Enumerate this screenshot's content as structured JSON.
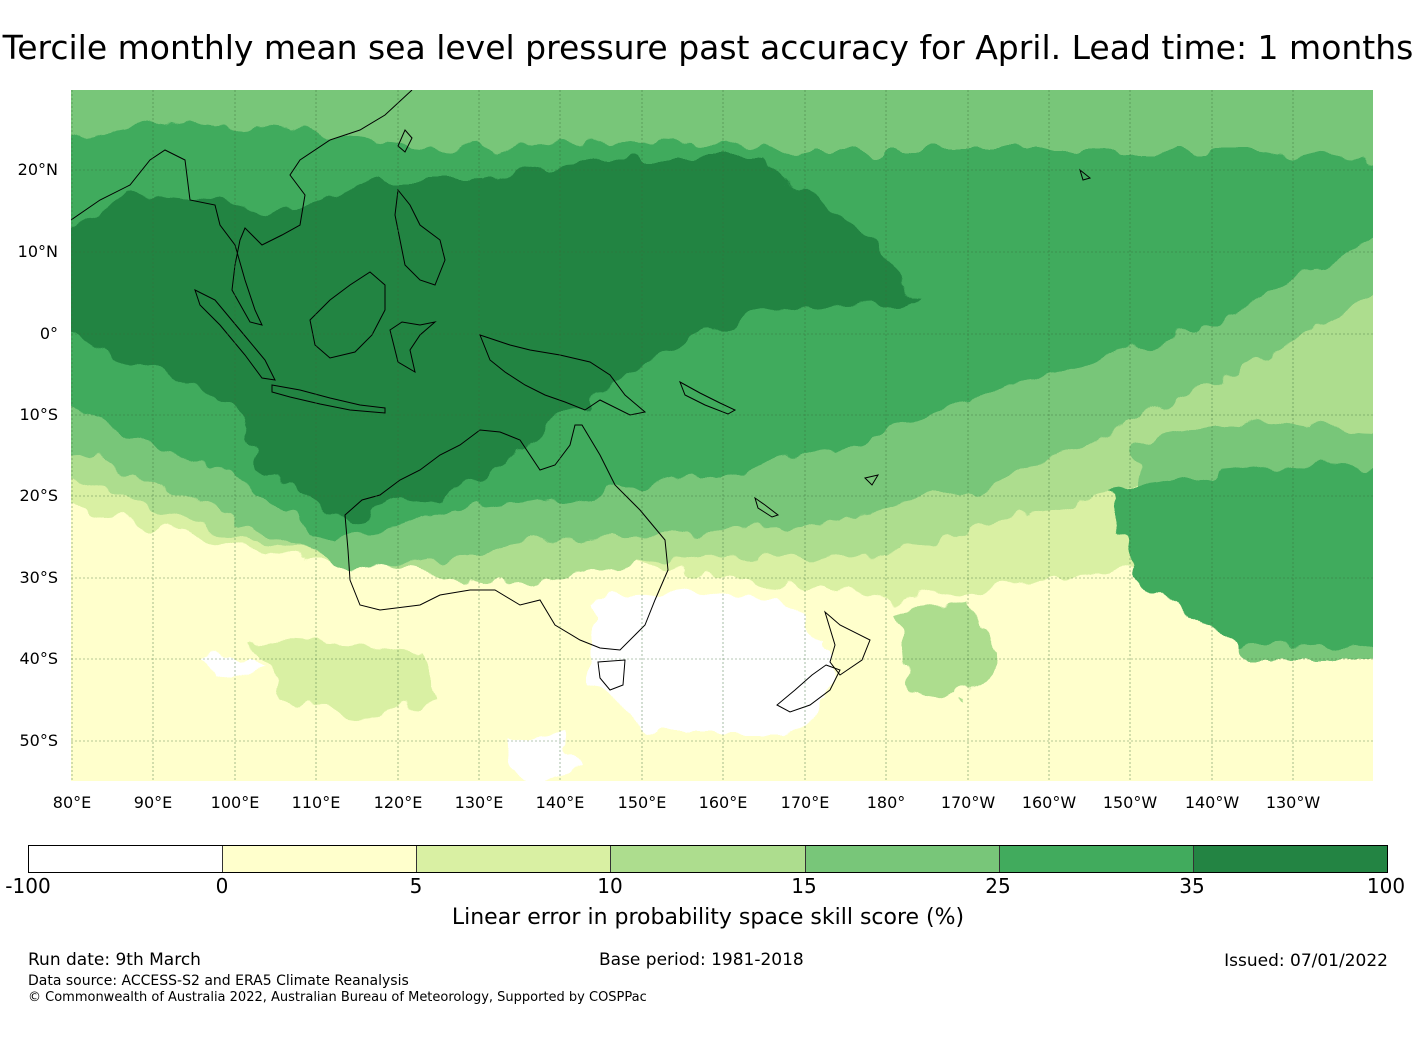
{
  "title": "Tercile monthly mean sea level pressure past accuracy for April. Lead time: 1 months",
  "map": {
    "lat_labels": [
      "20°N",
      "10°N",
      "0°",
      "10°S",
      "20°S",
      "30°S",
      "40°S",
      "50°S"
    ],
    "lon_labels": [
      "80°E",
      "90°E",
      "100°E",
      "110°E",
      "120°E",
      "130°E",
      "140°E",
      "150°E",
      "160°E",
      "170°E",
      "180°",
      "170°W",
      "160°W",
      "150°W",
      "140°W",
      "130°W"
    ]
  },
  "colorbar": {
    "ticks": [
      "-100",
      "0",
      "5",
      "10",
      "15",
      "25",
      "35",
      "100"
    ],
    "colors": [
      "#ffffff",
      "#ffffcc",
      "#d9f0a3",
      "#addd8e",
      "#78c679",
      "#41ab5d",
      "#238443"
    ],
    "label": "Linear error in probability space skill score (%)"
  },
  "footer": {
    "run_date": "Run date: 9th March",
    "base_period": "Base period: 1981-2018",
    "issued": "Issued: 07/01/2022",
    "data_source": "Data source: ACCESS-S2 and ERA5 Climate Reanalysis",
    "copyright": "© Commonwealth of Australia 2022, Australian Bureau of Meteorology, Supported by COSPPac"
  }
}
